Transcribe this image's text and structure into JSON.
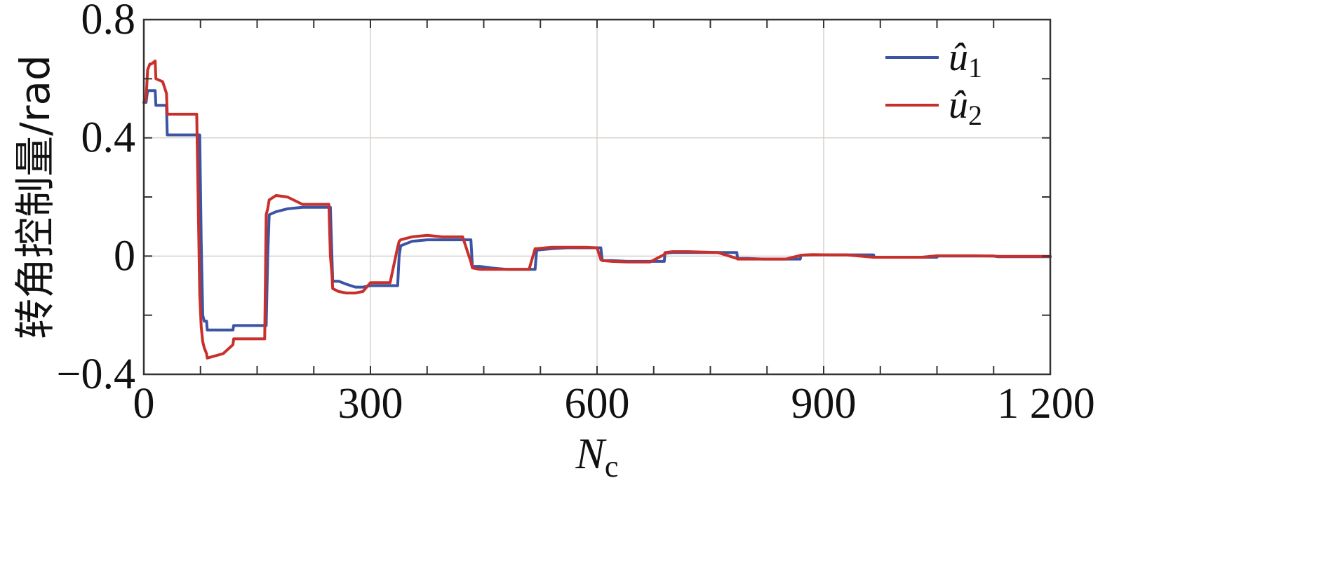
{
  "chart_data": {
    "type": "line",
    "title": "",
    "xlabel": "N",
    "xlabel_subscript": "c",
    "ylabel": "转角控制量/rad",
    "xlim": [
      0,
      1200
    ],
    "ylim": [
      -0.4,
      0.8
    ],
    "xticks": [
      0,
      300,
      600,
      900,
      1200
    ],
    "xtick_labels": [
      "0",
      "300",
      "600",
      "900",
      "1 200"
    ],
    "yticks": [
      -0.4,
      0,
      0.4,
      0.8
    ],
    "ytick_labels": [
      "−0.4",
      "0",
      "0.4",
      "0.8"
    ],
    "x_minor_ticks": [
      75,
      150,
      225,
      375,
      450,
      525,
      675,
      750,
      825,
      975,
      1050,
      1125
    ],
    "y_minor_ticks": [
      -0.2,
      0.2,
      0.6
    ],
    "grid": true,
    "legend_position": "top-right",
    "series": [
      {
        "name": "û",
        "name_subscript": "1",
        "color": "#3b55a4",
        "points": [
          [
            0,
            0.52
          ],
          [
            3,
            0.52
          ],
          [
            5,
            0.56
          ],
          [
            8,
            0.56
          ],
          [
            10,
            0.56
          ],
          [
            15,
            0.56
          ],
          [
            16,
            0.51
          ],
          [
            25,
            0.51
          ],
          [
            30,
            0.51
          ],
          [
            31,
            0.41
          ],
          [
            70,
            0.41
          ],
          [
            74,
            0.41
          ],
          [
            76,
            0.05
          ],
          [
            78,
            -0.2
          ],
          [
            80,
            -0.22
          ],
          [
            83,
            -0.22
          ],
          [
            84,
            -0.25
          ],
          [
            105,
            -0.25
          ],
          [
            118,
            -0.25
          ],
          [
            119,
            -0.235
          ],
          [
            160,
            -0.235
          ],
          [
            162,
            -0.235
          ],
          [
            164,
            0.0
          ],
          [
            166,
            0.14
          ],
          [
            175,
            0.15
          ],
          [
            190,
            0.16
          ],
          [
            210,
            0.165
          ],
          [
            245,
            0.165
          ],
          [
            247,
            0.165
          ],
          [
            249,
            0.0
          ],
          [
            250,
            -0.085
          ],
          [
            258,
            -0.085
          ],
          [
            268,
            -0.095
          ],
          [
            280,
            -0.105
          ],
          [
            290,
            -0.105
          ],
          [
            300,
            -0.1
          ],
          [
            318,
            -0.1
          ],
          [
            326,
            -0.1
          ],
          [
            336,
            -0.1
          ],
          [
            338,
            0.0
          ],
          [
            340,
            0.035
          ],
          [
            355,
            0.05
          ],
          [
            375,
            0.055
          ],
          [
            395,
            0.055
          ],
          [
            422,
            0.055
          ],
          [
            433,
            0.055
          ],
          [
            435,
            -0.035
          ],
          [
            445,
            -0.035
          ],
          [
            460,
            -0.04
          ],
          [
            480,
            -0.045
          ],
          [
            510,
            -0.045
          ],
          [
            518,
            -0.045
          ],
          [
            520,
            0.02
          ],
          [
            540,
            0.025
          ],
          [
            560,
            0.028
          ],
          [
            585,
            0.028
          ],
          [
            600,
            0.028
          ],
          [
            605,
            0.028
          ],
          [
            607,
            -0.015
          ],
          [
            620,
            -0.015
          ],
          [
            640,
            -0.018
          ],
          [
            670,
            -0.018
          ],
          [
            689,
            -0.018
          ],
          [
            690,
            0.01
          ],
          [
            700,
            0.012
          ],
          [
            720,
            0.012
          ],
          [
            760,
            0.012
          ],
          [
            785,
            0.012
          ],
          [
            786,
            -0.008
          ],
          [
            800,
            -0.008
          ],
          [
            820,
            -0.01
          ],
          [
            850,
            -0.01
          ],
          [
            869,
            -0.01
          ],
          [
            870,
            0.003
          ],
          [
            885,
            0.004
          ],
          [
            910,
            0.004
          ],
          [
            930,
            0.004
          ],
          [
            966,
            0.004
          ],
          [
            967,
            -0.004
          ],
          [
            985,
            -0.004
          ],
          [
            1000,
            -0.004
          ],
          [
            1030,
            -0.004
          ],
          [
            1050,
            -0.004
          ],
          [
            1051,
            0.0
          ],
          [
            1080,
            0.0
          ],
          [
            1100,
            0.0
          ],
          [
            1125,
            0.0
          ],
          [
            1130,
            -0.002
          ],
          [
            1160,
            -0.002
          ],
          [
            1200,
            -0.002
          ]
        ]
      },
      {
        "name": "û",
        "name_subscript": "2",
        "color": "#c8302c",
        "points": [
          [
            0,
            0.52
          ],
          [
            3,
            0.53
          ],
          [
            5,
            0.63
          ],
          [
            8,
            0.65
          ],
          [
            10,
            0.65
          ],
          [
            15,
            0.66
          ],
          [
            16,
            0.6
          ],
          [
            25,
            0.59
          ],
          [
            30,
            0.55
          ],
          [
            31,
            0.48
          ],
          [
            70,
            0.48
          ],
          [
            74,
            -0.13
          ],
          [
            76,
            -0.24
          ],
          [
            78,
            -0.29
          ],
          [
            80,
            -0.31
          ],
          [
            83,
            -0.33
          ],
          [
            84,
            -0.345
          ],
          [
            105,
            -0.33
          ],
          [
            118,
            -0.3
          ],
          [
            119,
            -0.28
          ],
          [
            160,
            -0.28
          ],
          [
            162,
            0.14
          ],
          [
            164,
            0.16
          ],
          [
            166,
            0.19
          ],
          [
            175,
            0.205
          ],
          [
            190,
            0.2
          ],
          [
            210,
            0.175
          ],
          [
            245,
            0.175
          ],
          [
            247,
            0.0
          ],
          [
            249,
            -0.06
          ],
          [
            250,
            -0.11
          ],
          [
            258,
            -0.12
          ],
          [
            268,
            -0.125
          ],
          [
            280,
            -0.125
          ],
          [
            290,
            -0.12
          ],
          [
            300,
            -0.09
          ],
          [
            318,
            -0.09
          ],
          [
            326,
            -0.09
          ],
          [
            336,
            0.03
          ],
          [
            338,
            0.05
          ],
          [
            340,
            0.055
          ],
          [
            355,
            0.065
          ],
          [
            375,
            0.07
          ],
          [
            395,
            0.065
          ],
          [
            422,
            0.065
          ],
          [
            433,
            -0.02
          ],
          [
            435,
            -0.04
          ],
          [
            445,
            -0.045
          ],
          [
            460,
            -0.045
          ],
          [
            480,
            -0.045
          ],
          [
            510,
            -0.045
          ],
          [
            518,
            0.025
          ],
          [
            520,
            0.025
          ],
          [
            540,
            0.03
          ],
          [
            560,
            0.03
          ],
          [
            585,
            0.03
          ],
          [
            600,
            0.028
          ],
          [
            605,
            -0.012
          ],
          [
            607,
            -0.015
          ],
          [
            620,
            -0.018
          ],
          [
            640,
            -0.02
          ],
          [
            670,
            -0.02
          ],
          [
            689,
            0.005
          ],
          [
            690,
            0.012
          ],
          [
            700,
            0.015
          ],
          [
            720,
            0.015
          ],
          [
            760,
            0.012
          ],
          [
            785,
            -0.008
          ],
          [
            786,
            -0.01
          ],
          [
            800,
            -0.01
          ],
          [
            820,
            -0.01
          ],
          [
            850,
            -0.01
          ],
          [
            869,
            0.002
          ],
          [
            870,
            0.003
          ],
          [
            885,
            0.005
          ],
          [
            910,
            0.004
          ],
          [
            930,
            0.004
          ],
          [
            966,
            -0.004
          ],
          [
            967,
            -0.004
          ],
          [
            985,
            -0.004
          ],
          [
            1000,
            -0.004
          ],
          [
            1030,
            -0.004
          ],
          [
            1050,
            0.001
          ],
          [
            1051,
            0.001
          ],
          [
            1080,
            0.001
          ],
          [
            1100,
            0.001
          ],
          [
            1125,
            0.0
          ],
          [
            1130,
            -0.001
          ],
          [
            1160,
            -0.001
          ],
          [
            1200,
            -0.001
          ]
        ]
      }
    ]
  }
}
